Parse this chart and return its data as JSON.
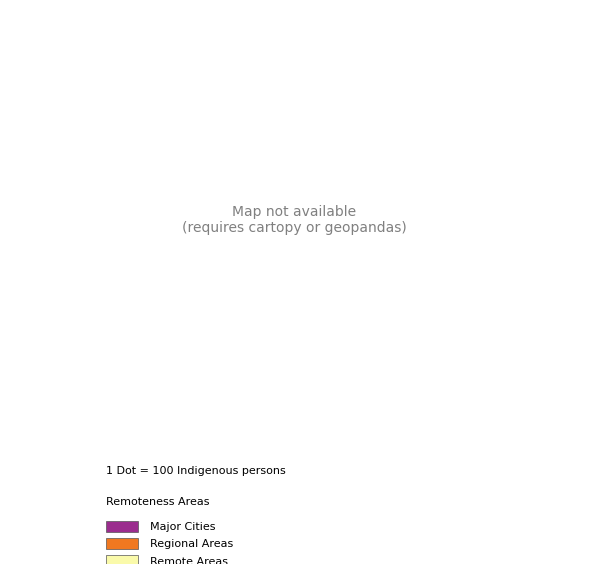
{
  "legend_title": "Remoteness Areas",
  "dot_label": "1 Dot = 100 Indigenous persons",
  "legend_items": [
    {
      "label": "Major Cities",
      "color": "#9B2D8E"
    },
    {
      "label": "Regional Areas",
      "color": "#F07820"
    },
    {
      "label": "Remote Areas",
      "color": "#FAFAAA"
    }
  ],
  "background_color": "#FFFFFF",
  "ocean_color": "#FFFFFF",
  "border_color": "#1A1A6E",
  "state_border_color": "#AAAAAA",
  "dot_color": "#E8000A",
  "dot_size": 2.5,
  "figsize": [
    5.89,
    5.64
  ],
  "dpi": 100
}
